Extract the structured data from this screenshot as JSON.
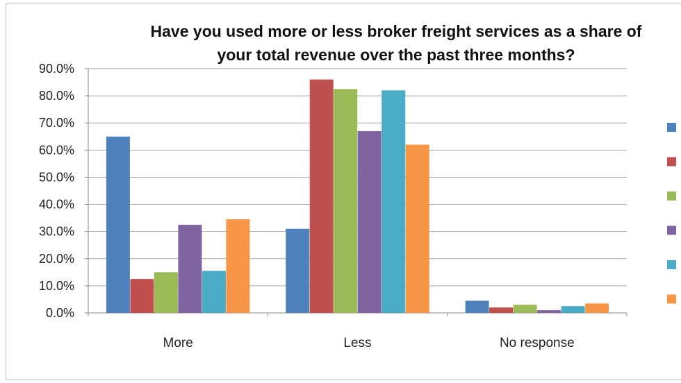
{
  "chart_data": {
    "type": "bar",
    "title_line1": "Have you used more or less broker freight services as a share of",
    "title_line2": "your total revenue over the past three months?",
    "categories": [
      "More",
      "Less",
      "No response"
    ],
    "ylim": [
      0,
      90
    ],
    "yticks": [
      "0.0%",
      "10.0%",
      "20.0%",
      "30.0%",
      "40.0%",
      "50.0%",
      "60.0%",
      "70.0%",
      "80.0%",
      "90.0%"
    ],
    "grid": true,
    "legend": "right",
    "series": [
      {
        "color": "#4f81bd",
        "values": [
          65.0,
          31.0,
          4.5
        ]
      },
      {
        "color": "#c0504d",
        "values": [
          12.5,
          86.0,
          2.0
        ]
      },
      {
        "color": "#9bbb59",
        "values": [
          15.0,
          82.5,
          3.0
        ]
      },
      {
        "color": "#8064a2",
        "values": [
          32.5,
          67.0,
          1.0
        ]
      },
      {
        "color": "#4bacc6",
        "values": [
          15.5,
          82.0,
          2.5
        ]
      },
      {
        "color": "#f79646",
        "values": [
          34.5,
          62.0,
          3.5
        ]
      }
    ]
  }
}
